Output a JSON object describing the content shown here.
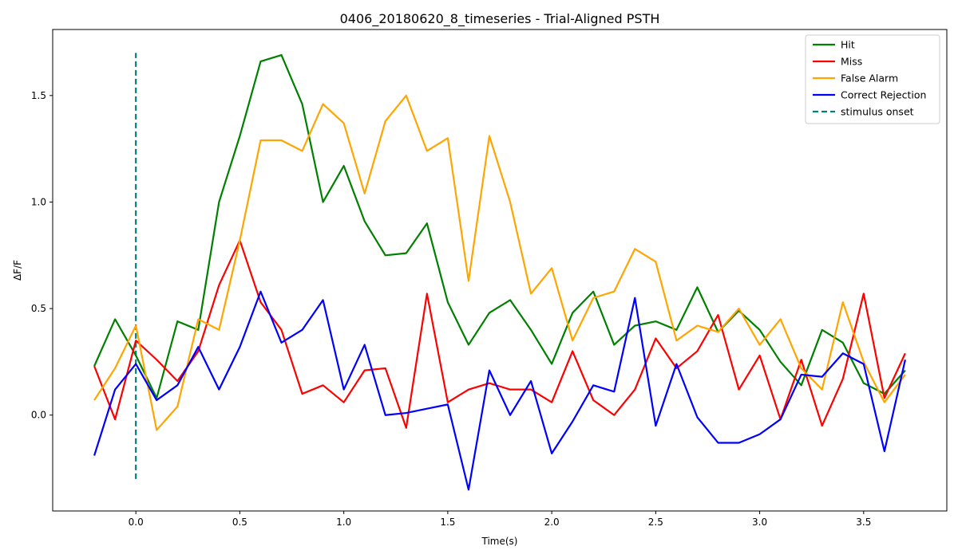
{
  "chart_data": {
    "type": "line",
    "title": "0406_20180620_8_timeseries - Trial-Aligned PSTH",
    "xlabel": "Time(s)",
    "ylabel": "ΔF/F",
    "xlim": [
      -0.4,
      3.9
    ],
    "ylim": [
      -0.45,
      1.81
    ],
    "x_ticks": [
      0.0,
      0.5,
      1.0,
      1.5,
      2.0,
      2.5,
      3.0,
      3.5
    ],
    "x_tick_labels": [
      "0.0",
      "0.5",
      "1.0",
      "1.5",
      "2.0",
      "2.5",
      "3.0",
      "3.5"
    ],
    "y_ticks": [
      0.0,
      0.5,
      1.0,
      1.5
    ],
    "y_tick_labels": [
      "0.0",
      "0.5",
      "1.0",
      "1.5"
    ],
    "grid": false,
    "legend_position": "top-right",
    "x": [
      -0.2,
      -0.1,
      0.0,
      0.1,
      0.2,
      0.3,
      0.4,
      0.5,
      0.6,
      0.7,
      0.8,
      0.9,
      1.0,
      1.1,
      1.2,
      1.3,
      1.4,
      1.5,
      1.6,
      1.7,
      1.8,
      1.9,
      2.0,
      2.1,
      2.2,
      2.3,
      2.4,
      2.5,
      2.6,
      2.7,
      2.8,
      2.9,
      3.0,
      3.1,
      3.2,
      3.3,
      3.4,
      3.5,
      3.6,
      3.7
    ],
    "series": [
      {
        "name": "Hit",
        "color": "#008000",
        "values": [
          0.23,
          0.45,
          0.28,
          0.08,
          0.44,
          0.4,
          1.0,
          1.31,
          1.66,
          1.69,
          1.46,
          1.0,
          1.17,
          0.91,
          0.75,
          0.76,
          0.9,
          0.53,
          0.33,
          0.48,
          0.54,
          0.4,
          0.24,
          0.48,
          0.58,
          0.33,
          0.42,
          0.44,
          0.4,
          0.6,
          0.39,
          0.49,
          0.4,
          0.25,
          0.14,
          0.4,
          0.34,
          0.15,
          0.1,
          0.21
        ]
      },
      {
        "name": "Miss",
        "color": "#ff0000",
        "values": [
          0.23,
          -0.02,
          0.35,
          0.26,
          0.16,
          0.3,
          0.61,
          0.82,
          0.53,
          0.4,
          0.1,
          0.14,
          0.06,
          0.21,
          0.22,
          -0.06,
          0.57,
          0.06,
          0.12,
          0.15,
          0.12,
          0.12,
          0.06,
          0.3,
          0.07,
          0.0,
          0.12,
          0.36,
          0.22,
          0.3,
          0.47,
          0.12,
          0.28,
          -0.02,
          0.26,
          -0.05,
          0.17,
          0.57,
          0.08,
          0.29
        ]
      },
      {
        "name": "False Alarm",
        "color": "#ffa500",
        "values": [
          0.07,
          0.22,
          0.42,
          -0.07,
          0.04,
          0.45,
          0.4,
          0.82,
          1.29,
          1.29,
          1.24,
          1.46,
          1.37,
          1.04,
          1.38,
          1.5,
          1.24,
          1.3,
          0.63,
          1.31,
          1.0,
          0.57,
          0.69,
          0.35,
          0.55,
          0.58,
          0.78,
          0.72,
          0.35,
          0.42,
          0.39,
          0.5,
          0.33,
          0.45,
          0.22,
          0.12,
          0.53,
          0.25,
          0.06,
          0.19
        ]
      },
      {
        "name": "Correct Rejection",
        "color": "#0000ff",
        "values": [
          -0.19,
          0.12,
          0.24,
          0.07,
          0.14,
          0.32,
          0.12,
          0.32,
          0.58,
          0.34,
          0.4,
          0.54,
          0.12,
          0.33,
          0.0,
          0.01,
          0.03,
          0.05,
          -0.35,
          0.21,
          0.0,
          0.16,
          -0.18,
          -0.03,
          0.14,
          0.11,
          0.55,
          -0.05,
          0.24,
          -0.01,
          -0.13,
          -0.13,
          -0.09,
          -0.02,
          0.19,
          0.18,
          0.29,
          0.24,
          -0.17,
          0.26
        ]
      }
    ],
    "stimulus_onset": {
      "name": "stimulus onset",
      "color": "#008080",
      "x": 0.0,
      "y_range": [
        -0.3,
        1.7
      ]
    }
  }
}
